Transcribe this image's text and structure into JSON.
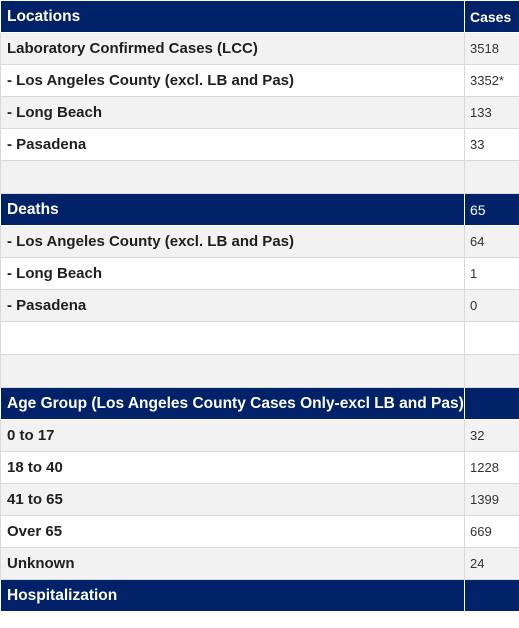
{
  "table": {
    "header": {
      "location": "Locations",
      "cases": "Cases"
    },
    "lcc_rows": [
      {
        "location": "Laboratory Confirmed Cases (LCC)",
        "value": "3518"
      },
      {
        "location": "- Los Angeles County (excl. LB and Pas)",
        "value": "3352*"
      },
      {
        "location": "- Long Beach",
        "value": "133"
      },
      {
        "location": "- Pasadena",
        "value": "33"
      }
    ],
    "deaths_header": {
      "label": "Deaths",
      "value": "65"
    },
    "deaths_rows": [
      {
        "location": "- Los Angeles County (excl. LB and Pas)",
        "value": "64"
      },
      {
        "location": "- Long Beach",
        "value": "1"
      },
      {
        "location": "- Pasadena",
        "value": "0"
      }
    ],
    "age_header": {
      "label": "Age Group (Los Angeles County Cases Only-excl LB and Pas)",
      "value": ""
    },
    "age_rows": [
      {
        "location": "0 to 17",
        "value": "32"
      },
      {
        "location": "18 to 40",
        "value": "1228"
      },
      {
        "location": "41 to 65",
        "value": "1399"
      },
      {
        "location": "Over 65",
        "value": "669"
      },
      {
        "location": "Unknown",
        "value": "24"
      }
    ],
    "hospitalization_header": {
      "label": "Hospitalization",
      "value": ""
    }
  },
  "colors": {
    "header_bg": "#012169",
    "row_shade": "#f2f2f2",
    "row_plain": "#ffffff"
  }
}
